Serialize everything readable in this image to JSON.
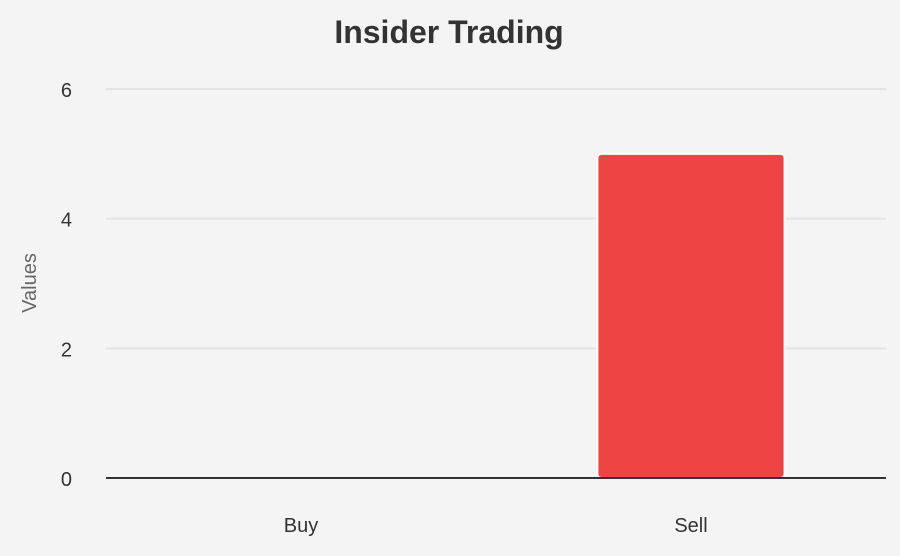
{
  "chart_data": {
    "type": "bar",
    "title": "Insider Trading",
    "xlabel": "",
    "ylabel": "Values",
    "categories": [
      "Buy",
      "Sell"
    ],
    "series": [
      {
        "values": [
          0,
          5
        ]
      }
    ],
    "ylim": [
      0,
      6
    ],
    "yticks": [
      0,
      2,
      4,
      6
    ],
    "ytick_labels": [
      "0",
      "2",
      "4",
      "6"
    ],
    "grid": true,
    "bar_color": "#ef4444",
    "grid_color": "#e3e3e3",
    "axis_color": "#333333"
  }
}
